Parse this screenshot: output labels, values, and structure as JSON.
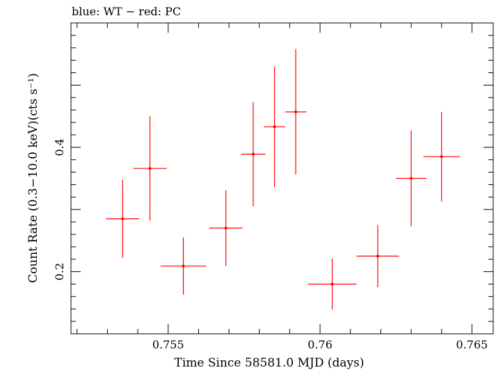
{
  "header": {
    "legend_text": "blue: WT − red: PC"
  },
  "chart_data": {
    "type": "scatter",
    "title": "",
    "xlabel": "Time Since 58581.0 MJD (days)",
    "ylabel": "Count Rate (0.3−10.0 keV)(cts s⁻¹)",
    "xlim": [
      0.7518,
      0.7657
    ],
    "ylim": [
      0.1,
      0.6
    ],
    "log_y": false,
    "grid": false,
    "x_ticks": [
      0.755,
      0.76,
      0.765
    ],
    "x_tick_labels": [
      "0.755",
      "0.76",
      "0.765"
    ],
    "y_ticks": [
      0.2,
      0.4
    ],
    "y_tick_labels": [
      "0.2",
      "0.4"
    ],
    "series": [
      {
        "color": "#ff0000",
        "points": [
          {
            "x": 0.7535,
            "xerr": 0.00055,
            "y": 0.285,
            "yerr_low": 0.063,
            "yerr_high": 0.063
          },
          {
            "x": 0.7544,
            "xerr": 0.00055,
            "y": 0.366,
            "yerr_low": 0.084,
            "yerr_high": 0.084
          },
          {
            "x": 0.7555,
            "xerr": 0.00075,
            "y": 0.209,
            "yerr_low": 0.046,
            "yerr_high": 0.046
          },
          {
            "x": 0.7569,
            "xerr": 0.00055,
            "y": 0.27,
            "yerr_low": 0.061,
            "yerr_high": 0.061
          },
          {
            "x": 0.7578,
            "xerr": 0.0004,
            "y": 0.389,
            "yerr_low": 0.084,
            "yerr_high": 0.084
          },
          {
            "x": 0.7585,
            "xerr": 0.00035,
            "y": 0.433,
            "yerr_low": 0.097,
            "yerr_high": 0.097
          },
          {
            "x": 0.7592,
            "xerr": 0.00035,
            "y": 0.457,
            "yerr_low": 0.101,
            "yerr_high": 0.101
          },
          {
            "x": 0.7604,
            "xerr": 0.0008,
            "y": 0.18,
            "yerr_low": 0.041,
            "yerr_high": 0.041
          },
          {
            "x": 0.7619,
            "xerr": 0.0007,
            "y": 0.225,
            "yerr_low": 0.05,
            "yerr_high": 0.05
          },
          {
            "x": 0.763,
            "xerr": 0.0005,
            "y": 0.35,
            "yerr_low": 0.077,
            "yerr_high": 0.077
          },
          {
            "x": 0.764,
            "xerr": 0.0006,
            "y": 0.385,
            "yerr_low": 0.072,
            "yerr_high": 0.072
          }
        ]
      }
    ]
  }
}
